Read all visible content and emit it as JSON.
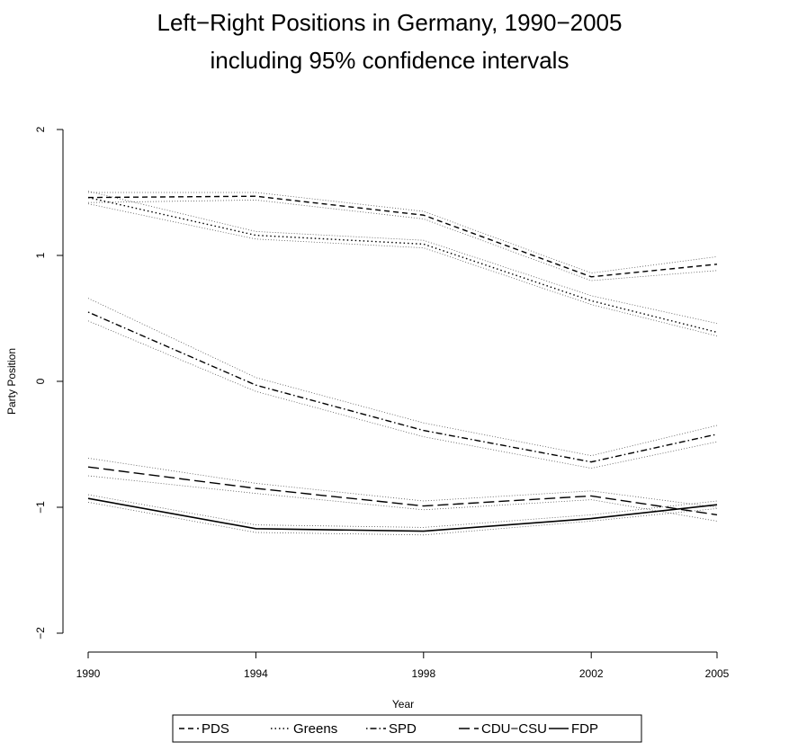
{
  "chart_data": {
    "type": "line",
    "title": "Left−Right Positions in Germany, 1990−2005",
    "subtitle": "including 95% confidence intervals",
    "xlabel": "Year",
    "ylabel": "Party Position",
    "x": [
      1990,
      1994,
      1998,
      2002,
      2005
    ],
    "x_ticks": [
      "1990",
      "1994",
      "1998",
      "2002",
      "2005"
    ],
    "ylim": [
      -2,
      2
    ],
    "y_ticks": [
      "−2",
      "−1",
      "0",
      "1",
      "2"
    ],
    "grid": false,
    "legend_position": "bottom",
    "series": [
      {
        "name": "PDS",
        "dash": "dashed",
        "values": [
          1.46,
          1.47,
          1.32,
          0.83,
          0.93
        ],
        "lower": [
          1.42,
          1.44,
          1.29,
          0.8,
          0.88
        ],
        "upper": [
          1.5,
          1.5,
          1.35,
          0.86,
          0.99
        ]
      },
      {
        "name": "Greens",
        "dash": "dotted",
        "values": [
          1.46,
          1.16,
          1.09,
          0.64,
          0.39
        ],
        "lower": [
          1.41,
          1.13,
          1.06,
          0.61,
          0.36
        ],
        "upper": [
          1.51,
          1.19,
          1.12,
          0.68,
          0.46
        ]
      },
      {
        "name": "SPD",
        "dash": "dotdash",
        "values": [
          0.55,
          -0.03,
          -0.39,
          -0.64,
          -0.42
        ],
        "lower": [
          0.48,
          -0.08,
          -0.44,
          -0.69,
          -0.48
        ],
        "upper": [
          0.66,
          0.03,
          -0.33,
          -0.59,
          -0.35
        ]
      },
      {
        "name": "CDU−CSU",
        "dash": "longdash",
        "values": [
          -0.68,
          -0.85,
          -0.99,
          -0.91,
          -1.06
        ],
        "lower": [
          -0.75,
          -0.89,
          -1.02,
          -0.94,
          -1.11
        ],
        "upper": [
          -0.61,
          -0.81,
          -0.95,
          -0.87,
          -1.0
        ]
      },
      {
        "name": "FDP",
        "dash": "solid",
        "values": [
          -0.93,
          -1.17,
          -1.19,
          -1.09,
          -0.98
        ],
        "lower": [
          -0.96,
          -1.2,
          -1.22,
          -1.11,
          -1.01
        ],
        "upper": [
          -0.9,
          -1.14,
          -1.16,
          -1.06,
          -0.95
        ]
      }
    ]
  }
}
